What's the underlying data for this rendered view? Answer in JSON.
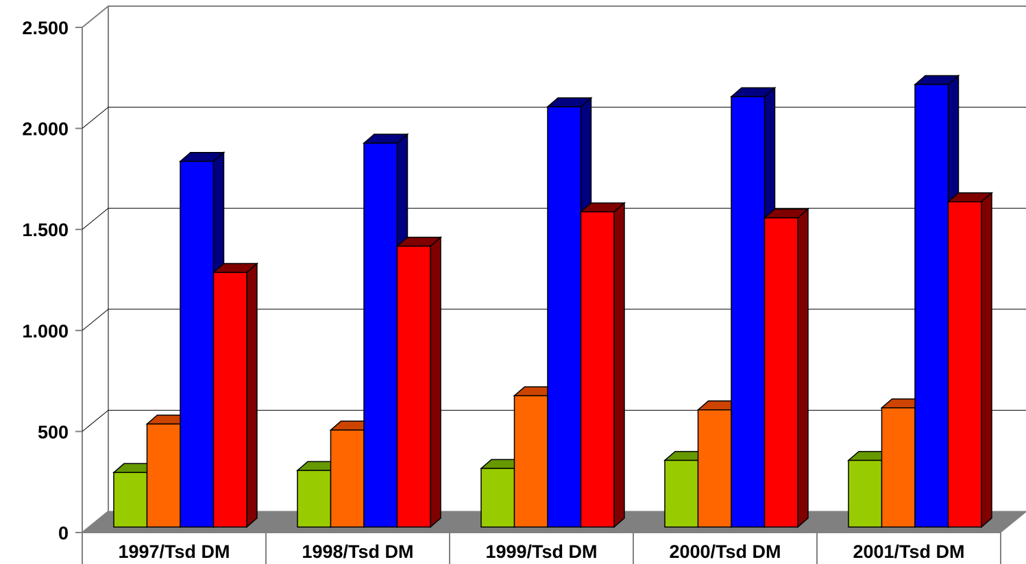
{
  "chart_data": {
    "type": "bar",
    "title": "",
    "xlabel": "",
    "ylabel": "",
    "ylim": [
      0,
      2500
    ],
    "yticks": [
      0,
      500,
      1000,
      1500,
      2000,
      2500
    ],
    "ytick_labels": [
      "0",
      "500",
      "1.000",
      "1.500",
      "2.000",
      "2.500"
    ],
    "categories": [
      "1997/Tsd DM",
      "1998/Tsd DM",
      "1999/Tsd DM",
      "2000/Tsd DM",
      "2001/Tsd DM"
    ],
    "grid": true,
    "legend": "none",
    "series": [
      {
        "values": [
          270,
          280,
          290,
          330,
          330
        ],
        "color": "#99cc00",
        "side_color": "#669900"
      },
      {
        "values": [
          510,
          480,
          650,
          580,
          590
        ],
        "color": "#ff6600",
        "side_color": "#cc4400"
      },
      {
        "values": [
          1810,
          1900,
          2080,
          2130,
          2190
        ],
        "color": "#0000ff",
        "side_color": "#000080"
      },
      {
        "values": [
          1260,
          1390,
          1560,
          1530,
          1610
        ],
        "color": "#ff0000",
        "side_color": "#800000"
      }
    ]
  }
}
